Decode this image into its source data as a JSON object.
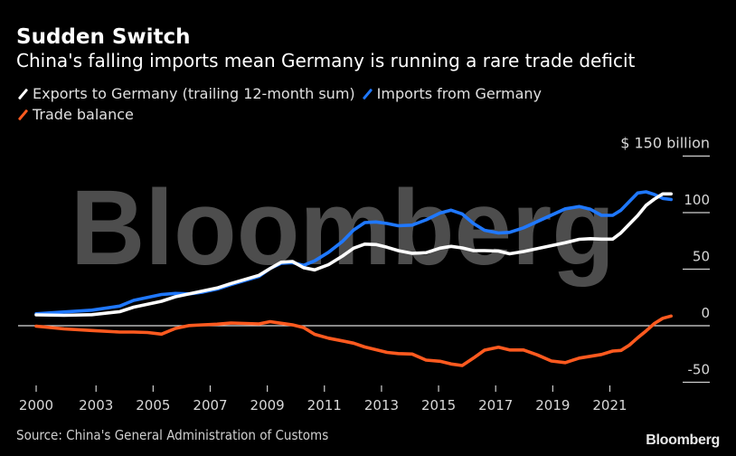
{
  "header": {
    "title": "Sudden Switch",
    "subtitle": "China's falling imports mean Germany is running a rare trade deficit"
  },
  "legend": [
    {
      "label": "Exports to Germany (trailing 12-month sum)",
      "color": "#ffffff"
    },
    {
      "label": "Imports from Germany",
      "color": "#1f78ff"
    },
    {
      "label": "Trade balance",
      "color": "#ff5a1f"
    }
  ],
  "watermark": "Bloomberg",
  "footer": {
    "source": "Source: China's General Administration of Customs",
    "brand": "Bloomberg"
  },
  "chart_data": {
    "type": "line",
    "title": "Sudden Switch",
    "subtitle": "China's falling imports mean Germany is running a rare trade deficit",
    "xlabel": "",
    "ylabel": "$ billion",
    "y_unit_label": "$ 150 billion",
    "ylim": [
      -60,
      150
    ],
    "xlim": [
      2000,
      2023
    ],
    "y_ticks": [
      150,
      100,
      50,
      0,
      -50
    ],
    "y_tick_labels": [
      "$ 150 billion",
      "100",
      "50",
      "0",
      "-50"
    ],
    "x_ticks": [
      2000,
      2003,
      2005,
      2007,
      2009,
      2011,
      2013,
      2015,
      2017,
      2019,
      2021
    ],
    "x_tick_labels": [
      "2000",
      "2003",
      "2005",
      "2007",
      "2009",
      "2011",
      "2013",
      "2015",
      "2017",
      "2019",
      "2021"
    ],
    "x_tick_positions": [
      2000,
      2002.15,
      2004.2,
      2006.25,
      2008.3,
      2010.35,
      2012.4,
      2014.45,
      2016.5,
      2018.55,
      2020.6
    ],
    "grid": false,
    "zero_line": true,
    "legend_position": "top-left",
    "x": [
      2000.0,
      2001.0,
      2002.0,
      2003.0,
      2003.5,
      2004.0,
      2004.5,
      2005.0,
      2005.5,
      2006.0,
      2006.5,
      2007.0,
      2007.5,
      2008.0,
      2008.4,
      2008.8,
      2009.2,
      2009.6,
      2010.0,
      2010.5,
      2011.0,
      2011.4,
      2011.8,
      2012.2,
      2012.6,
      2013.0,
      2013.5,
      2014.0,
      2014.5,
      2014.9,
      2015.3,
      2015.7,
      2016.1,
      2016.6,
      2017.0,
      2017.5,
      2018.0,
      2018.5,
      2019.0,
      2019.5,
      2019.9,
      2020.3,
      2020.7,
      2021.0,
      2021.3,
      2021.6,
      2021.9,
      2022.2,
      2022.5,
      2022.8
    ],
    "series": [
      {
        "name": "Exports to Germany (trailing 12-month sum)",
        "color": "#ffffff",
        "values": [
          9,
          9,
          10,
          13,
          16,
          19,
          22,
          25,
          28,
          31,
          34,
          37,
          41,
          45,
          50,
          56,
          57,
          52,
          49,
          54,
          62,
          68,
          72,
          72,
          70,
          66,
          64,
          65,
          68,
          70,
          69,
          67,
          66,
          66,
          64,
          65,
          68,
          71,
          74,
          76,
          77,
          77,
          76,
          82,
          90,
          98,
          106,
          112,
          117,
          116
        ]
      },
      {
        "name": "Imports from Germany",
        "color": "#1f78ff",
        "values": [
          10,
          12,
          14,
          18,
          22,
          25,
          28,
          28,
          28,
          30,
          33,
          36,
          40,
          44,
          50,
          55,
          56,
          54,
          57,
          65,
          75,
          84,
          91,
          92,
          91,
          88,
          89,
          94,
          99,
          102,
          99,
          91,
          84,
          82,
          83,
          86,
          92,
          98,
          104,
          105,
          103,
          98,
          97,
          102,
          110,
          118,
          118,
          116,
          113,
          111
        ]
      },
      {
        "name": "Trade balance",
        "color": "#ff5a1f",
        "values": [
          -1,
          -3,
          -4,
          -5,
          -6,
          -6,
          -7,
          -3,
          0,
          1,
          2,
          2,
          2,
          2,
          3,
          2,
          1,
          -1,
          -8,
          -11,
          -13,
          -16,
          -19,
          -21,
          -23,
          -25,
          -25,
          -30,
          -32,
          -34,
          -35,
          -28,
          -22,
          -19,
          -21,
          -22,
          -26,
          -31,
          -32,
          -29,
          -27,
          -25,
          -23,
          -22,
          -17,
          -10,
          -5,
          2,
          7,
          8
        ]
      }
    ]
  }
}
